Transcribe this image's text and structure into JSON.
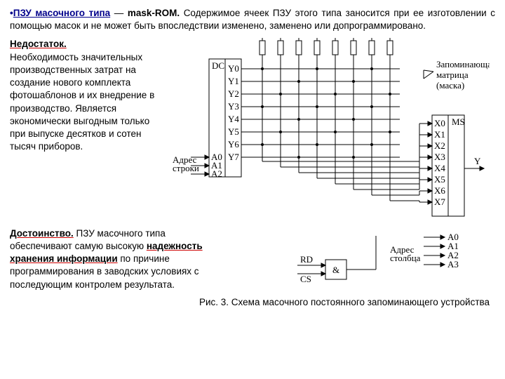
{
  "para1": {
    "bullet": "•",
    "title": "ПЗУ масочного типа",
    "dash": "—",
    "bold": "mask-ROM.",
    "rest": "Содержимое ячеек ПЗУ этого типа заносится при ее изготовлении с помощью масок и не может быть впоследствии изменено, заменено или допрограммировано."
  },
  "drawback": {
    "heading": "Недостаток.",
    "body": "Необходимость значительных производственных затрат на создание нового комплекта фотошаблонов и их внедрение в производство. Является экономически выгодным только при выпуске десятков и сотен тысяч приборов."
  },
  "advantage": {
    "heading": "Достоинство.",
    "lead": "ПЗУ масочного типа обеспечивают самую высокую ",
    "highlight": "надежность хранения информации",
    "tail": " по причине программирования в заводских условиях с последующим контролем результата."
  },
  "caption": "Рис. 3. Схема масочного постоянного запоминающего устройства",
  "diagram": {
    "dc": "DC",
    "y_labels": [
      "Y0",
      "Y1",
      "Y2",
      "Y3",
      "Y4",
      "Y5",
      "Y6",
      "Y7"
    ],
    "addr_row": "Адрес\nстроки",
    "a_labels": [
      "A0",
      "A1",
      "A2"
    ],
    "ms": "MS",
    "x_labels": [
      "X0",
      "X1",
      "X2",
      "X3",
      "X4",
      "X5",
      "X6",
      "X7"
    ],
    "y_out": "Y",
    "addr_col": "Адрес\nстолбца",
    "a2_labels": [
      "A0",
      "A1",
      "A2",
      "A3"
    ],
    "rd": "RD",
    "cs": "CS",
    "and": "&",
    "annotation": [
      "Запоминающая",
      "матрица",
      "(маска)"
    ]
  }
}
